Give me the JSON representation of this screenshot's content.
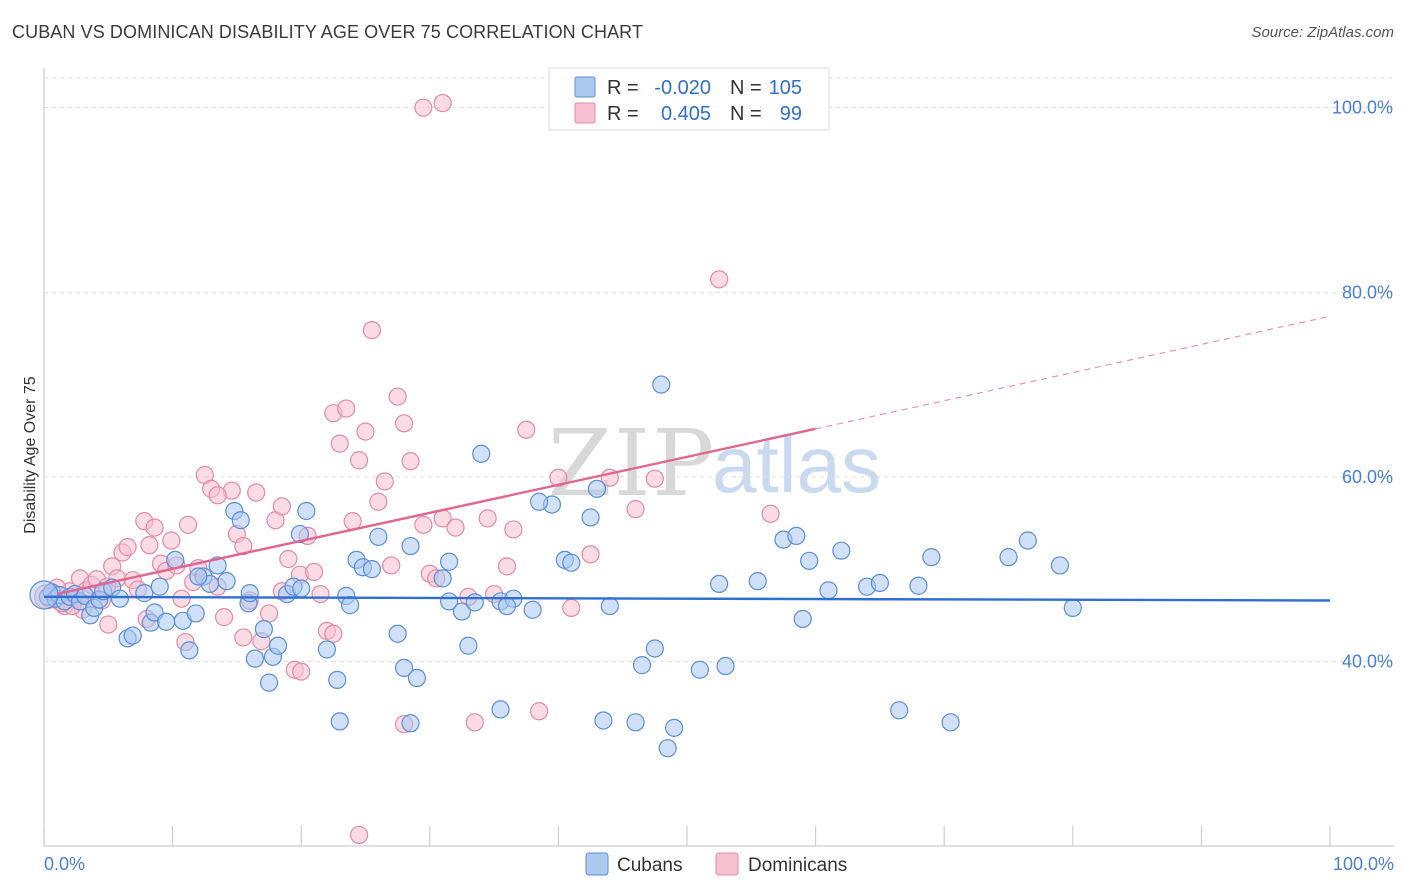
{
  "title": "CUBAN VS DOMINICAN DISABILITY AGE OVER 75 CORRELATION CHART",
  "source": "Source: ZipAtlas.com",
  "watermark": {
    "zip": "ZIP",
    "atlas": "atlas"
  },
  "colors": {
    "cubans_fill": "#aac8f0",
    "cubans_stroke": "#5b8fd8",
    "cubans_line": "#2f6fcf",
    "dominicans_fill": "#f7c0d0",
    "dominicans_stroke": "#e58aa6",
    "dominicans_line": "#e06690",
    "tick_label": "#4a7fd4",
    "grid": "#dddddd"
  },
  "legend": {
    "rows": [
      {
        "r_label": "R =",
        "r_value": "-0.020",
        "n_label": "N =",
        "n_value": "105"
      },
      {
        "r_label": "R =",
        "r_value": "0.405",
        "n_label": "N =",
        "n_value": "99"
      }
    ]
  },
  "bottom_legend": {
    "cubans": "Cubans",
    "dominicans": "Dominicans"
  },
  "chart_data": {
    "type": "scatter",
    "title": "CUBAN VS DOMINICAN DISABILITY AGE OVER 75 CORRELATION CHART",
    "xlabel": "",
    "ylabel": "Disability Age Over 75",
    "xlim": [
      0,
      100
    ],
    "ylim": [
      20,
      103
    ],
    "x_tick_labels": [
      "0.0%",
      "100.0%"
    ],
    "y_ticks": [
      40,
      60,
      80,
      100
    ],
    "y_tick_labels": [
      "40.0%",
      "60.0%",
      "80.0%",
      "100.0%"
    ],
    "grid": "horizontal dashed",
    "series": [
      {
        "name": "Cubans",
        "stats": {
          "R": -0.02,
          "N": 105
        },
        "trend": {
          "x0": 0,
          "y0": 47.0,
          "x1": 100,
          "y1": 46.6,
          "dashed_from": null
        },
        "points": [
          [
            0.3,
            47.0
          ],
          [
            0.6,
            47.5
          ],
          [
            0.9,
            46.8
          ],
          [
            1.2,
            47.2
          ],
          [
            1.6,
            46.5
          ],
          [
            2.0,
            47.0
          ],
          [
            2.4,
            47.3
          ],
          [
            2.8,
            46.5
          ],
          [
            3.2,
            47.1
          ],
          [
            3.6,
            45.0
          ],
          [
            3.9,
            45.8
          ],
          [
            4.3,
            46.7
          ],
          [
            4.6,
            47.6
          ],
          [
            5.3,
            48.0
          ],
          [
            5.9,
            46.8
          ],
          [
            6.5,
            42.5
          ],
          [
            6.9,
            42.8
          ],
          [
            7.8,
            47.4
          ],
          [
            8.3,
            44.2
          ],
          [
            8.6,
            45.3
          ],
          [
            9.5,
            44.3
          ],
          [
            10.2,
            51.0
          ],
          [
            10.8,
            44.4
          ],
          [
            11.3,
            41.2
          ],
          [
            11.8,
            45.2
          ],
          [
            12.4,
            49.2
          ],
          [
            12.9,
            48.4
          ],
          [
            13.5,
            50.4
          ],
          [
            14.2,
            48.7
          ],
          [
            14.8,
            56.3
          ],
          [
            15.3,
            55.3
          ],
          [
            15.9,
            46.3
          ],
          [
            16.4,
            40.3
          ],
          [
            17.1,
            43.5
          ],
          [
            17.8,
            40.5
          ],
          [
            18.2,
            41.7
          ],
          [
            18.9,
            47.3
          ],
          [
            19.4,
            48.1
          ],
          [
            19.9,
            53.8
          ],
          [
            20.4,
            56.3
          ],
          [
            22.0,
            41.3
          ],
          [
            22.8,
            38.0
          ],
          [
            23.5,
            47.1
          ],
          [
            23.8,
            46.1
          ],
          [
            24.3,
            51.0
          ],
          [
            24.8,
            50.2
          ],
          [
            26.0,
            53.5
          ],
          [
            27.5,
            43.0
          ],
          [
            28.0,
            39.3
          ],
          [
            28.5,
            52.5
          ],
          [
            29.0,
            38.2
          ],
          [
            31.0,
            49.0
          ],
          [
            31.5,
            46.5
          ],
          [
            32.5,
            45.4
          ],
          [
            33.0,
            41.7
          ],
          [
            33.5,
            46.4
          ],
          [
            34.0,
            62.5
          ],
          [
            35.5,
            46.5
          ],
          [
            36.5,
            46.8
          ],
          [
            38.0,
            45.6
          ],
          [
            39.5,
            57.0
          ],
          [
            40.5,
            51.0
          ],
          [
            41.0,
            50.7
          ],
          [
            42.5,
            55.6
          ],
          [
            43.0,
            58.7
          ],
          [
            44.0,
            46.0
          ],
          [
            46.5,
            39.6
          ],
          [
            47.5,
            41.4
          ],
          [
            48.0,
            70.0
          ],
          [
            49.0,
            32.8
          ],
          [
            51.0,
            39.1
          ],
          [
            52.5,
            48.4
          ],
          [
            53.0,
            39.5
          ],
          [
            55.5,
            48.7
          ],
          [
            57.5,
            53.2
          ],
          [
            58.5,
            53.6
          ],
          [
            59.0,
            44.6
          ],
          [
            59.5,
            50.9
          ],
          [
            61.0,
            47.7
          ],
          [
            62.0,
            52.0
          ],
          [
            64.0,
            48.1
          ],
          [
            65.0,
            48.5
          ],
          [
            66.5,
            34.7
          ],
          [
            68.0,
            48.2
          ],
          [
            69.0,
            51.3
          ],
          [
            70.5,
            33.4
          ],
          [
            75.0,
            51.3
          ],
          [
            76.5,
            53.1
          ],
          [
            79.0,
            50.4
          ],
          [
            80.0,
            45.8
          ],
          [
            48.5,
            30.6
          ],
          [
            43.5,
            33.6
          ],
          [
            46.0,
            33.4
          ],
          [
            35.5,
            34.8
          ],
          [
            23.0,
            33.5
          ],
          [
            28.5,
            33.3
          ],
          [
            31.5,
            50.8
          ],
          [
            25.5,
            50.0
          ],
          [
            38.5,
            57.3
          ],
          [
            17.5,
            37.7
          ],
          [
            36.0,
            46.0
          ],
          [
            20.0,
            47.9
          ],
          [
            12.0,
            49.2
          ],
          [
            9.0,
            48.1
          ],
          [
            16.0,
            47.4
          ]
        ]
      },
      {
        "name": "Dominicans",
        "stats": {
          "R": 0.405,
          "N": 99
        },
        "trend": {
          "x0": 1,
          "y0": 47.3,
          "x1": 60,
          "y1": 65.2,
          "dashed_to_x": 100,
          "dashed_to_y": 77.4
        },
        "points": [
          [
            0.4,
            46.8
          ],
          [
            0.8,
            47.3
          ],
          [
            1.2,
            46.5
          ],
          [
            1.6,
            46.0
          ],
          [
            2.0,
            47.6
          ],
          [
            2.4,
            46.7
          ],
          [
            2.8,
            49.0
          ],
          [
            3.3,
            47.7
          ],
          [
            3.7,
            48.3
          ],
          [
            4.1,
            48.9
          ],
          [
            4.5,
            46.6
          ],
          [
            4.9,
            48.1
          ],
          [
            5.3,
            50.3
          ],
          [
            5.7,
            49.0
          ],
          [
            6.1,
            51.8
          ],
          [
            6.5,
            52.4
          ],
          [
            6.9,
            48.8
          ],
          [
            7.3,
            47.8
          ],
          [
            7.8,
            55.2
          ],
          [
            8.2,
            52.6
          ],
          [
            8.6,
            54.5
          ],
          [
            9.1,
            50.6
          ],
          [
            9.5,
            49.8
          ],
          [
            9.9,
            53.1
          ],
          [
            10.3,
            50.4
          ],
          [
            10.7,
            46.8
          ],
          [
            11.2,
            54.8
          ],
          [
            11.6,
            48.6
          ],
          [
            12.0,
            50.1
          ],
          [
            12.5,
            60.2
          ],
          [
            13.0,
            58.7
          ],
          [
            13.5,
            48.1
          ],
          [
            14.0,
            44.8
          ],
          [
            14.6,
            58.5
          ],
          [
            15.0,
            53.8
          ],
          [
            15.5,
            52.5
          ],
          [
            16.0,
            46.6
          ],
          [
            16.5,
            58.3
          ],
          [
            16.9,
            42.2
          ],
          [
            17.5,
            45.2
          ],
          [
            18.0,
            55.3
          ],
          [
            18.5,
            47.6
          ],
          [
            19.0,
            51.1
          ],
          [
            19.5,
            39.1
          ],
          [
            19.9,
            49.4
          ],
          [
            20.5,
            53.6
          ],
          [
            21.0,
            49.7
          ],
          [
            21.5,
            47.3
          ],
          [
            22.0,
            43.3
          ],
          [
            22.5,
            66.9
          ],
          [
            23.0,
            63.6
          ],
          [
            23.5,
            67.4
          ],
          [
            24.0,
            55.2
          ],
          [
            24.5,
            61.8
          ],
          [
            25.0,
            64.9
          ],
          [
            25.5,
            75.9
          ],
          [
            26.0,
            57.3
          ],
          [
            26.5,
            59.5
          ],
          [
            27.0,
            50.4
          ],
          [
            27.5,
            68.7
          ],
          [
            28.0,
            65.8
          ],
          [
            28.5,
            61.7
          ],
          [
            29.5,
            54.8
          ],
          [
            30.0,
            49.5
          ],
          [
            31.0,
            55.5
          ],
          [
            32.0,
            54.5
          ],
          [
            33.0,
            47.0
          ],
          [
            34.5,
            55.5
          ],
          [
            36.0,
            50.3
          ],
          [
            37.5,
            65.1
          ],
          [
            38.5,
            34.6
          ],
          [
            40.0,
            59.9
          ],
          [
            41.0,
            45.8
          ],
          [
            42.5,
            51.6
          ],
          [
            44.0,
            59.9
          ],
          [
            46.0,
            56.5
          ],
          [
            47.5,
            59.8
          ],
          [
            52.5,
            81.4
          ],
          [
            56.5,
            56.0
          ],
          [
            33.5,
            33.4
          ],
          [
            28.0,
            33.2
          ],
          [
            24.5,
            21.2
          ],
          [
            29.5,
            100.0
          ],
          [
            31.0,
            100.5
          ],
          [
            36.5,
            54.3
          ],
          [
            20.0,
            38.9
          ],
          [
            15.5,
            42.6
          ],
          [
            11.0,
            42.1
          ],
          [
            8.0,
            44.6
          ],
          [
            5.0,
            44.0
          ],
          [
            3.0,
            45.6
          ],
          [
            2.2,
            46.0
          ],
          [
            1.4,
            46.3
          ],
          [
            1.0,
            48.0
          ],
          [
            22.5,
            43.0
          ],
          [
            18.5,
            56.8
          ],
          [
            13.5,
            58.0
          ],
          [
            30.5,
            49.0
          ],
          [
            35.0,
            47.3
          ]
        ]
      }
    ]
  }
}
